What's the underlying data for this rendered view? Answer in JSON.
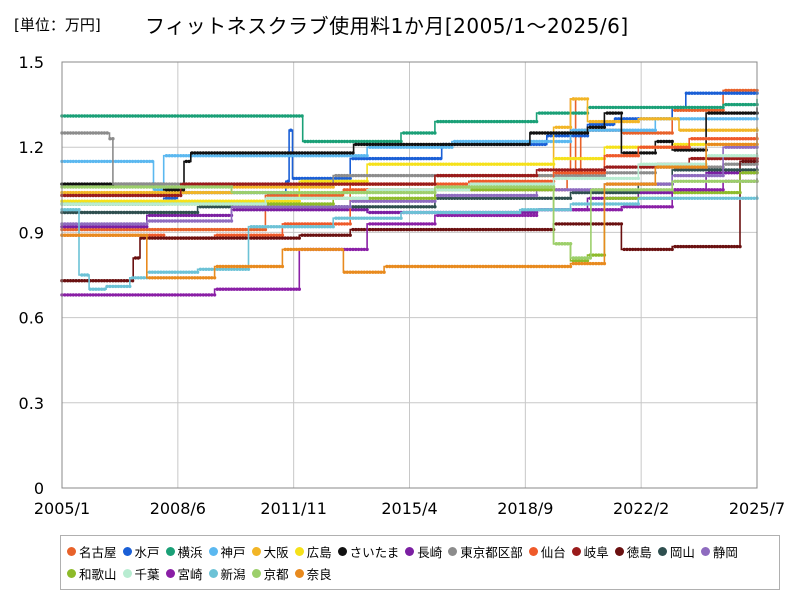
{
  "unit_label": "[単位：万円]",
  "title": "フィットネスクラブ使用料1か月[2005/1～2025/6]",
  "chart_data": {
    "type": "line",
    "title": "フィットネスクラブ使用料1か月[2005/1～2025/6]",
    "unit": "万円",
    "xlabel": "",
    "ylabel": "",
    "xlim": [
      2005.0,
      2025.5
    ],
    "ylim": [
      0,
      1.5
    ],
    "yticks": [
      "0",
      "0.3",
      "0.6",
      "0.9",
      "1.2",
      "1.5"
    ],
    "xticks": [
      {
        "label": "2005/1",
        "t": 2005.0
      },
      {
        "label": "2008/6",
        "t": 2008.417
      },
      {
        "label": "2011/11",
        "t": 2011.833
      },
      {
        "label": "2015/4",
        "t": 2015.25
      },
      {
        "label": "2018/9",
        "t": 2018.667
      },
      {
        "label": "2022/2",
        "t": 2022.083
      },
      {
        "label": "2025/7",
        "t": 2025.5
      }
    ],
    "grid": true,
    "legend_position": "bottom",
    "series": [
      {
        "name": "名古屋",
        "color": "#e8622a",
        "points": [
          [
            2005.0,
            0.91
          ],
          [
            2008.0,
            0.91
          ],
          [
            2011.0,
            1.03
          ],
          [
            2013.3,
            1.05
          ],
          [
            2019.9,
            1.11
          ],
          [
            2020.0,
            1.37
          ],
          [
            2020.15,
            1.1
          ],
          [
            2020.3,
            1.26
          ],
          [
            2021.5,
            1.25
          ],
          [
            2023.0,
            1.33
          ],
          [
            2024.5,
            1.4
          ],
          [
            2025.5,
            1.4
          ]
        ]
      },
      {
        "name": "水戸",
        "color": "#1a5fd6",
        "points": [
          [
            2005.0,
            1.0
          ],
          [
            2008.0,
            1.02
          ],
          [
            2008.4,
            1.04
          ],
          [
            2011.6,
            1.08
          ],
          [
            2011.7,
            1.26
          ],
          [
            2011.8,
            1.09
          ],
          [
            2013.5,
            1.16
          ],
          [
            2016.2,
            1.21
          ],
          [
            2019.3,
            1.24
          ],
          [
            2020.5,
            1.28
          ],
          [
            2021.3,
            1.3
          ],
          [
            2023.0,
            1.34
          ],
          [
            2023.4,
            1.39
          ],
          [
            2025.5,
            1.39
          ]
        ]
      },
      {
        "name": "横浜",
        "color": "#1aa077",
        "points": [
          [
            2005.0,
            1.31
          ],
          [
            2012.0,
            1.31
          ],
          [
            2012.1,
            1.22
          ],
          [
            2015.0,
            1.25
          ],
          [
            2016.0,
            1.29
          ],
          [
            2019.0,
            1.32
          ],
          [
            2020.5,
            1.34
          ],
          [
            2024.5,
            1.35
          ],
          [
            2025.5,
            1.37
          ]
        ]
      },
      {
        "name": "神戸",
        "color": "#5bb8f0",
        "points": [
          [
            2005.0,
            1.15
          ],
          [
            2007.5,
            1.15
          ],
          [
            2007.7,
            1.05
          ],
          [
            2008.0,
            1.17
          ],
          [
            2012.0,
            1.17
          ],
          [
            2014.0,
            1.2
          ],
          [
            2016.5,
            1.22
          ],
          [
            2020.0,
            1.26
          ],
          [
            2022.5,
            1.3
          ],
          [
            2025.5,
            1.32
          ]
        ]
      },
      {
        "name": "大阪",
        "color": "#f2b526",
        "points": [
          [
            2005.0,
            1.04
          ],
          [
            2009.0,
            1.04
          ],
          [
            2010.0,
            1.06
          ],
          [
            2013.0,
            1.07
          ],
          [
            2016.0,
            1.1
          ],
          [
            2018.5,
            1.1
          ],
          [
            2019.5,
            1.27
          ],
          [
            2020.0,
            1.37
          ],
          [
            2020.5,
            1.29
          ],
          [
            2022.0,
            1.3
          ],
          [
            2023.2,
            1.26
          ],
          [
            2025.5,
            1.27
          ]
        ]
      },
      {
        "name": "広島",
        "color": "#f5e11a",
        "points": [
          [
            2005.0,
            1.01
          ],
          [
            2008.5,
            1.01
          ],
          [
            2012.0,
            1.08
          ],
          [
            2014.0,
            1.14
          ],
          [
            2016.0,
            1.14
          ],
          [
            2017.5,
            1.14
          ],
          [
            2019.5,
            1.16
          ],
          [
            2021.0,
            1.2
          ],
          [
            2023.0,
            1.21
          ],
          [
            2025.5,
            1.22
          ]
        ]
      },
      {
        "name": "さいたま",
        "color": "#111111",
        "points": [
          [
            2005.0,
            1.07
          ],
          [
            2008.0,
            1.05
          ],
          [
            2008.6,
            1.15
          ],
          [
            2008.8,
            1.18
          ],
          [
            2013.5,
            1.18
          ],
          [
            2013.6,
            1.21
          ],
          [
            2018.0,
            1.21
          ],
          [
            2018.8,
            1.25
          ],
          [
            2019.8,
            1.25
          ],
          [
            2020.5,
            1.27
          ],
          [
            2021.0,
            1.32
          ],
          [
            2021.5,
            1.18
          ],
          [
            2022.5,
            1.22
          ],
          [
            2023.0,
            1.19
          ],
          [
            2024.0,
            1.32
          ],
          [
            2025.5,
            1.34
          ]
        ]
      },
      {
        "name": "長崎",
        "color": "#7b1fa2",
        "points": [
          [
            2005.0,
            0.92
          ],
          [
            2006.0,
            0.92
          ],
          [
            2007.5,
            0.96
          ],
          [
            2010.0,
            0.98
          ],
          [
            2014.0,
            0.97
          ],
          [
            2016.0,
            0.97
          ],
          [
            2019.0,
            0.98
          ],
          [
            2020.5,
            1.02
          ],
          [
            2022.0,
            1.04
          ],
          [
            2023.0,
            1.05
          ],
          [
            2024.0,
            1.11
          ],
          [
            2025.5,
            1.14
          ]
        ]
      },
      {
        "name": "東京都区部",
        "color": "#8c8c8c",
        "points": [
          [
            2005.0,
            1.25
          ],
          [
            2006.2,
            1.25
          ],
          [
            2006.4,
            1.23
          ],
          [
            2006.5,
            1.07
          ],
          [
            2009.0,
            1.07
          ],
          [
            2013.0,
            1.1
          ],
          [
            2016.0,
            1.1
          ],
          [
            2019.0,
            1.1
          ],
          [
            2021.0,
            1.11
          ],
          [
            2022.5,
            1.13
          ],
          [
            2024.5,
            1.14
          ],
          [
            2025.5,
            1.15
          ]
        ]
      },
      {
        "name": "仙台",
        "color": "#ef5a2a",
        "points": [
          [
            2005.0,
            0.89
          ],
          [
            2007.5,
            0.89
          ],
          [
            2008.0,
            0.88
          ],
          [
            2009.5,
            0.89
          ],
          [
            2011.5,
            0.93
          ],
          [
            2013.5,
            1.07
          ],
          [
            2017.0,
            1.08
          ],
          [
            2019.5,
            1.11
          ],
          [
            2021.0,
            1.17
          ],
          [
            2022.0,
            1.2
          ],
          [
            2023.5,
            1.23
          ],
          [
            2025.5,
            1.25
          ]
        ]
      },
      {
        "name": "岐阜",
        "color": "#9a1b1b",
        "points": [
          [
            2005.0,
            1.03
          ],
          [
            2008.5,
            1.07
          ],
          [
            2012.0,
            1.07
          ],
          [
            2013.5,
            1.07
          ],
          [
            2016.0,
            1.1
          ],
          [
            2019.0,
            1.12
          ],
          [
            2021.0,
            1.13
          ],
          [
            2022.5,
            1.14
          ],
          [
            2023.5,
            1.16
          ],
          [
            2025.5,
            1.18
          ]
        ]
      },
      {
        "name": "徳島",
        "color": "#6a1010",
        "points": [
          [
            2005.0,
            0.73
          ],
          [
            2007.0,
            0.73
          ],
          [
            2007.1,
            0.81
          ],
          [
            2007.3,
            0.88
          ],
          [
            2009.0,
            0.88
          ],
          [
            2012.0,
            0.89
          ],
          [
            2013.5,
            0.91
          ],
          [
            2019.5,
            0.93
          ],
          [
            2021.0,
            0.93
          ],
          [
            2021.5,
            0.84
          ],
          [
            2022.5,
            0.84
          ],
          [
            2023.0,
            0.85
          ],
          [
            2024.9,
            0.85
          ],
          [
            2025.0,
            1.15
          ],
          [
            2025.5,
            1.16
          ]
        ]
      },
      {
        "name": "岡山",
        "color": "#2f4f4f",
        "points": [
          [
            2005.0,
            0.97
          ],
          [
            2008.0,
            0.97
          ],
          [
            2009.0,
            0.99
          ],
          [
            2012.0,
            0.99
          ],
          [
            2015.5,
            0.99
          ],
          [
            2016.0,
            1.02
          ],
          [
            2019.0,
            1.02
          ],
          [
            2020.0,
            1.04
          ],
          [
            2022.0,
            1.07
          ],
          [
            2023.0,
            1.12
          ],
          [
            2025.5,
            1.13
          ]
        ]
      },
      {
        "name": "静岡",
        "color": "#8e6bbf",
        "points": [
          [
            2005.0,
            0.93
          ],
          [
            2006.5,
            0.93
          ],
          [
            2007.5,
            0.94
          ],
          [
            2010.0,
            0.99
          ],
          [
            2013.5,
            1.01
          ],
          [
            2016.0,
            1.03
          ],
          [
            2019.0,
            1.05
          ],
          [
            2021.0,
            1.07
          ],
          [
            2023.0,
            1.1
          ],
          [
            2024.5,
            1.2
          ],
          [
            2025.5,
            1.2
          ]
        ]
      },
      {
        "name": "和歌山",
        "color": "#8dbb2a",
        "points": [
          [
            2005.0,
            1.0
          ],
          [
            2008.5,
            1.0
          ],
          [
            2011.0,
            1.0
          ],
          [
            2013.0,
            1.02
          ],
          [
            2016.0,
            1.05
          ],
          [
            2019.0,
            1.05
          ],
          [
            2019.5,
            0.86
          ],
          [
            2020.0,
            0.8
          ],
          [
            2020.5,
            0.82
          ],
          [
            2021.0,
            1.02
          ],
          [
            2023.0,
            1.04
          ],
          [
            2024.5,
            1.04
          ],
          [
            2025.0,
            1.11
          ],
          [
            2025.5,
            1.12
          ]
        ]
      },
      {
        "name": "千葉",
        "color": "#b8ecd1",
        "points": [
          [
            2005.0,
            1.0
          ],
          [
            2008.0,
            1.0
          ],
          [
            2011.0,
            1.02
          ],
          [
            2014.0,
            1.05
          ],
          [
            2017.0,
            1.07
          ],
          [
            2019.5,
            1.09
          ],
          [
            2022.0,
            1.14
          ],
          [
            2024.0,
            1.17
          ],
          [
            2025.5,
            1.19
          ]
        ]
      },
      {
        "name": "宮崎",
        "color": "#8a1fa6",
        "points": [
          [
            2005.0,
            0.68
          ],
          [
            2009.0,
            0.68
          ],
          [
            2009.5,
            0.7
          ],
          [
            2011.9,
            0.7
          ],
          [
            2012.0,
            0.84
          ],
          [
            2013.5,
            0.84
          ],
          [
            2014.0,
            0.93
          ],
          [
            2016.0,
            0.96
          ],
          [
            2019.0,
            0.98
          ],
          [
            2021.5,
            0.99
          ],
          [
            2023.0,
            1.05
          ],
          [
            2024.5,
            1.08
          ],
          [
            2025.5,
            1.09
          ]
        ]
      },
      {
        "name": "新潟",
        "color": "#6cc2d6",
        "points": [
          [
            2005.0,
            0.98
          ],
          [
            2005.5,
            0.75
          ],
          [
            2005.8,
            0.7
          ],
          [
            2006.3,
            0.71
          ],
          [
            2007.0,
            0.74
          ],
          [
            2007.5,
            0.76
          ],
          [
            2009.0,
            0.77
          ],
          [
            2010.5,
            0.92
          ],
          [
            2013.0,
            0.95
          ],
          [
            2015.0,
            0.97
          ],
          [
            2018.5,
            0.98
          ],
          [
            2020.0,
            1.0
          ],
          [
            2022.0,
            1.02
          ],
          [
            2025.5,
            1.03
          ]
        ]
      },
      {
        "name": "京都",
        "color": "#9ccf6b",
        "points": [
          [
            2005.0,
            1.06
          ],
          [
            2008.0,
            1.06
          ],
          [
            2010.0,
            1.04
          ],
          [
            2013.0,
            1.04
          ],
          [
            2016.0,
            1.06
          ],
          [
            2018.5,
            1.06
          ],
          [
            2019.5,
            0.86
          ],
          [
            2020.0,
            0.81
          ],
          [
            2020.6,
            1.05
          ],
          [
            2023.0,
            1.08
          ],
          [
            2025.5,
            1.09
          ]
        ]
      },
      {
        "name": "奈良",
        "color": "#e88a1e",
        "points": [
          [
            2005.0,
            0.89
          ],
          [
            2006.0,
            0.89
          ],
          [
            2007.5,
            0.74
          ],
          [
            2009.5,
            0.78
          ],
          [
            2011.3,
            0.78
          ],
          [
            2011.5,
            0.84
          ],
          [
            2013.0,
            0.84
          ],
          [
            2013.3,
            0.76
          ],
          [
            2014.0,
            0.76
          ],
          [
            2014.5,
            0.78
          ],
          [
            2019.5,
            0.78
          ],
          [
            2020.0,
            0.79
          ],
          [
            2021.0,
            1.07
          ],
          [
            2022.5,
            1.13
          ],
          [
            2024.0,
            1.21
          ],
          [
            2025.5,
            1.24
          ]
        ]
      }
    ]
  }
}
